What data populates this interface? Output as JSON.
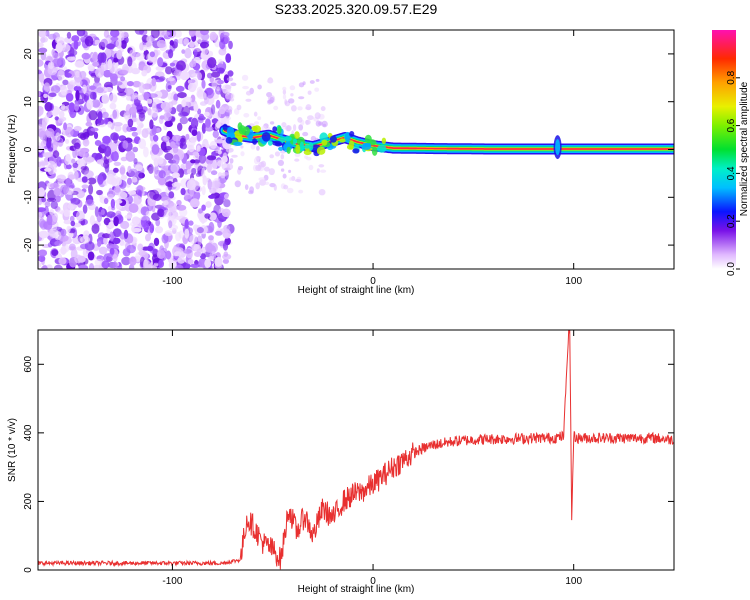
{
  "title": "S233.2025.320.09.57.E29",
  "chart_data": [
    {
      "type": "heatmap",
      "name": "spectrogram",
      "xlabel": "Height of straight line (km)",
      "ylabel": "Frequency (Hz)",
      "xlim": [
        -167,
        150
      ],
      "ylim": [
        -25,
        25
      ],
      "xticks": [
        -100,
        0,
        100
      ],
      "yticks": [
        -20,
        -10,
        0,
        10,
        20
      ],
      "noise_region_x": [
        -167,
        -75
      ],
      "signal_region_x": [
        -75,
        150
      ],
      "signal_freq_track": [
        {
          "x": -74,
          "f": 4.0
        },
        {
          "x": -68,
          "f": 3.0
        },
        {
          "x": -60,
          "f": 2.5
        },
        {
          "x": -52,
          "f": 3.0
        },
        {
          "x": -45,
          "f": 2.0
        },
        {
          "x": -38,
          "f": 1.2
        },
        {
          "x": -30,
          "f": 0.6
        },
        {
          "x": -22,
          "f": 1.5
        },
        {
          "x": -14,
          "f": 2.5
        },
        {
          "x": -8,
          "f": 1.6
        },
        {
          "x": 0,
          "f": 0.8
        },
        {
          "x": 10,
          "f": 0.3
        },
        {
          "x": 30,
          "f": 0.2
        },
        {
          "x": 60,
          "f": 0.1
        },
        {
          "x": 90,
          "f": 0.1
        },
        {
          "x": 120,
          "f": 0.1
        },
        {
          "x": 150,
          "f": 0.1
        }
      ],
      "colorbar": {
        "label": "Normalized spectral amplitude",
        "ticks": [
          "0.0",
          "0.2",
          "0.4",
          "0.6",
          "0.8"
        ],
        "range": [
          0,
          1
        ]
      }
    },
    {
      "type": "line",
      "name": "snr",
      "xlabel": "Height of straight line (km)",
      "ylabel": "SNR (10 * v/v)",
      "xlim": [
        -167,
        150
      ],
      "ylim": [
        0,
        700
      ],
      "xticks": [
        -100,
        0,
        100
      ],
      "yticks": [
        0,
        200,
        400,
        600
      ],
      "series": [
        {
          "name": "SNR",
          "color": "#e83030",
          "x": [
            -167,
            -150,
            -130,
            -110,
            -90,
            -75,
            -66,
            -63,
            -60,
            -55,
            -50,
            -46,
            -42,
            -38,
            -34,
            -30,
            -25,
            -20,
            -15,
            -10,
            -5,
            0,
            5,
            10,
            15,
            20,
            25,
            30,
            40,
            50,
            60,
            70,
            80,
            90,
            95,
            97,
            98,
            99,
            100,
            102,
            105,
            110,
            120,
            130,
            140,
            150
          ],
          "y": [
            20,
            20,
            20,
            20,
            20,
            20,
            30,
            150,
            130,
            80,
            60,
            30,
            180,
            110,
            160,
            100,
            180,
            150,
            200,
            220,
            230,
            250,
            275,
            300,
            320,
            340,
            355,
            365,
            375,
            380,
            382,
            383,
            385,
            385,
            390,
            650,
            720,
            150,
            390,
            385,
            385,
            385,
            385,
            385,
            385,
            380
          ]
        }
      ]
    }
  ]
}
